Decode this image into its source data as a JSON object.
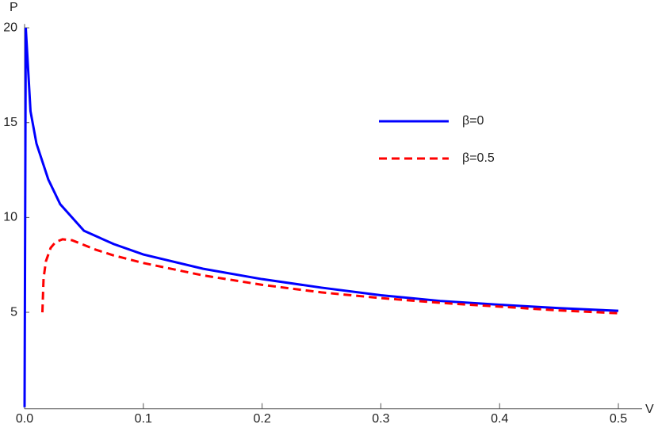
{
  "chart_data": {
    "type": "line",
    "xlabel": "V",
    "ylabel": "P",
    "xlim": [
      0,
      0.52
    ],
    "ylim": [
      0,
      20.2
    ],
    "xticks": [
      {
        "value": 0,
        "label": "0.0"
      },
      0.1,
      0.2,
      0.3,
      0.4,
      0.5
    ],
    "yticks": [
      5,
      10,
      15,
      20
    ],
    "legend": "upper right",
    "series": [
      {
        "name": "β=0",
        "color": "#0000ff",
        "linestyle": "solid",
        "x": [
          0,
          0.001,
          0.005,
          0.01,
          0.02,
          0.03,
          0.05,
          0.075,
          0.1,
          0.15,
          0.2,
          0.25,
          0.3,
          0.35,
          0.4,
          0.45,
          0.5
        ],
        "values": [
          0,
          20,
          15.6,
          13.9,
          12,
          10.7,
          9.3,
          8.6,
          8.05,
          7.3,
          6.75,
          6.3,
          5.9,
          5.6,
          5.4,
          5.22,
          5.08
        ]
      },
      {
        "name": "β=0.5",
        "color": "#ff0000",
        "linestyle": "dashed",
        "x": [
          0.015,
          0.016,
          0.018,
          0.022,
          0.026,
          0.032,
          0.04,
          0.06,
          0.075,
          0.1,
          0.15,
          0.2,
          0.25,
          0.3,
          0.35,
          0.4,
          0.45,
          0.5
        ],
        "values": [
          5,
          6.8,
          7.7,
          8.4,
          8.7,
          8.85,
          8.8,
          8.3,
          8.0,
          7.6,
          6.95,
          6.45,
          6.05,
          5.75,
          5.5,
          5.3,
          5.1,
          4.95
        ]
      }
    ]
  }
}
